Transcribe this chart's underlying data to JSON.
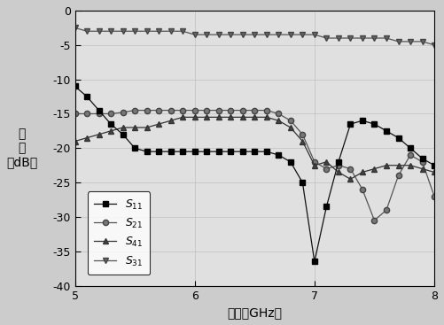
{
  "xlim": [
    5,
    8
  ],
  "ylim": [
    -40,
    0
  ],
  "xticks": [
    5,
    6,
    7,
    8
  ],
  "yticks": [
    0,
    -5,
    -10,
    -15,
    -20,
    -25,
    -30,
    -35,
    -40
  ],
  "S11_x": [
    5.0,
    5.1,
    5.2,
    5.3,
    5.4,
    5.5,
    5.6,
    5.7,
    5.8,
    5.9,
    6.0,
    6.1,
    6.2,
    6.3,
    6.4,
    6.5,
    6.6,
    6.7,
    6.8,
    6.9,
    7.0,
    7.1,
    7.2,
    7.3,
    7.4,
    7.5,
    7.6,
    7.7,
    7.8,
    7.9,
    8.0
  ],
  "S11_y": [
    -11.0,
    -12.5,
    -14.5,
    -16.5,
    -18.0,
    -20.0,
    -20.5,
    -20.5,
    -20.5,
    -20.5,
    -20.5,
    -20.5,
    -20.5,
    -20.5,
    -20.5,
    -20.5,
    -20.5,
    -21.0,
    -22.0,
    -25.0,
    -36.5,
    -28.5,
    -22.0,
    -16.5,
    -16.0,
    -16.5,
    -17.5,
    -18.5,
    -20.0,
    -21.5,
    -22.5
  ],
  "S21_x": [
    5.0,
    5.1,
    5.2,
    5.3,
    5.4,
    5.5,
    5.6,
    5.7,
    5.8,
    5.9,
    6.0,
    6.1,
    6.2,
    6.3,
    6.4,
    6.5,
    6.6,
    6.7,
    6.8,
    6.9,
    7.0,
    7.1,
    7.2,
    7.3,
    7.4,
    7.5,
    7.6,
    7.7,
    7.8,
    7.9,
    8.0
  ],
  "S21_y": [
    -15.0,
    -15.0,
    -15.0,
    -15.0,
    -14.8,
    -14.5,
    -14.5,
    -14.5,
    -14.5,
    -14.5,
    -14.5,
    -14.5,
    -14.5,
    -14.5,
    -14.5,
    -14.5,
    -14.5,
    -15.0,
    -16.0,
    -18.0,
    -22.0,
    -23.0,
    -22.5,
    -23.0,
    -26.0,
    -30.5,
    -29.0,
    -24.0,
    -21.0,
    -22.0,
    -27.0
  ],
  "S41_x": [
    5.0,
    5.1,
    5.2,
    5.3,
    5.4,
    5.5,
    5.6,
    5.7,
    5.8,
    5.9,
    6.0,
    6.1,
    6.2,
    6.3,
    6.4,
    6.5,
    6.6,
    6.7,
    6.8,
    6.9,
    7.0,
    7.1,
    7.2,
    7.3,
    7.4,
    7.5,
    7.6,
    7.7,
    7.8,
    7.9,
    8.0
  ],
  "S41_y": [
    -19.0,
    -18.5,
    -18.0,
    -17.5,
    -17.0,
    -17.0,
    -17.0,
    -16.5,
    -16.0,
    -15.5,
    -15.5,
    -15.5,
    -15.5,
    -15.5,
    -15.5,
    -15.5,
    -15.5,
    -16.0,
    -17.0,
    -19.0,
    -22.5,
    -22.0,
    -23.5,
    -24.5,
    -23.5,
    -23.0,
    -22.5,
    -22.5,
    -22.5,
    -23.0,
    -23.5
  ],
  "S31_x": [
    5.0,
    5.1,
    5.2,
    5.3,
    5.4,
    5.5,
    5.6,
    5.7,
    5.8,
    5.9,
    6.0,
    6.1,
    6.2,
    6.3,
    6.4,
    6.5,
    6.6,
    6.7,
    6.8,
    6.9,
    7.0,
    7.1,
    7.2,
    7.3,
    7.4,
    7.5,
    7.6,
    7.7,
    7.8,
    7.9,
    8.0
  ],
  "S31_y": [
    -2.5,
    -3.0,
    -3.0,
    -3.0,
    -3.0,
    -3.0,
    -3.0,
    -3.0,
    -3.0,
    -3.0,
    -3.5,
    -3.5,
    -3.5,
    -3.5,
    -3.5,
    -3.5,
    -3.5,
    -3.5,
    -3.5,
    -3.5,
    -3.5,
    -4.0,
    -4.0,
    -4.0,
    -4.0,
    -4.0,
    -4.0,
    -4.5,
    -4.5,
    -4.5,
    -5.0
  ],
  "xlabel": "频率（GHz）",
  "ylabel_line1": "幅",
  "ylabel_line2": "度",
  "ylabel_line3": "（dB）",
  "bg_color": "#d4d4d4",
  "plot_bg": "#e8e8e8"
}
